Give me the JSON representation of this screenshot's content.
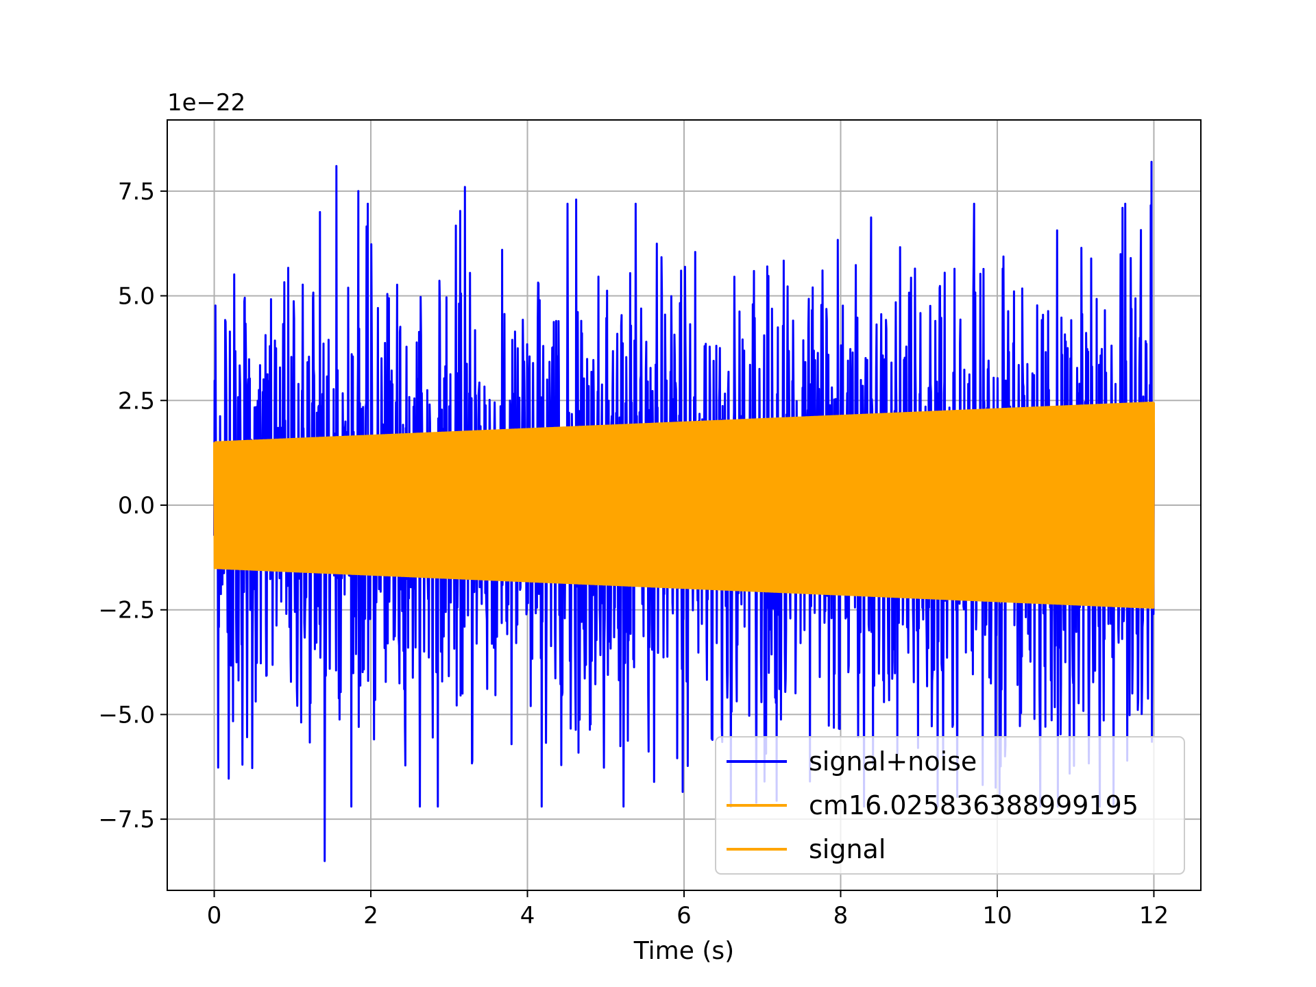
{
  "chart_data": {
    "type": "line",
    "title": "",
    "xlabel": "Time (s)",
    "ylabel": "",
    "offset_text": "1e−22",
    "xlim": [
      -0.6,
      12.6
    ],
    "ylim": [
      -9.2,
      9.2
    ],
    "xticks": [
      0,
      2,
      4,
      6,
      8,
      10,
      12
    ],
    "xtick_labels": [
      "0",
      "2",
      "4",
      "6",
      "8",
      "10",
      "12"
    ],
    "yticks": [
      -7.5,
      -5.0,
      -2.5,
      0.0,
      2.5,
      5.0,
      7.5
    ],
    "ytick_labels": [
      "−7.5",
      "−5.0",
      "−2.5",
      "0.0",
      "2.5",
      "5.0",
      "7.5"
    ],
    "grid": true,
    "legend_position": "lower-right",
    "series": [
      {
        "name": "signal+noise",
        "color": "#0000ff",
        "x_range": [
          0,
          12
        ],
        "y_range": [
          -8.5,
          8.2
        ],
        "peaks": [
          {
            "x": 1.41,
            "y": -8.5
          },
          {
            "x": 1.56,
            "y": 8.1
          },
          {
            "x": 11.97,
            "y": 8.2
          },
          {
            "x": 3.2,
            "y": 7.6
          },
          {
            "x": 1.84,
            "y": 7.5
          },
          {
            "x": 4.62,
            "y": 7.3
          },
          {
            "x": 1.35,
            "y": 7.0
          },
          {
            "x": 11.6,
            "y": 7.1
          },
          {
            "x": 7.03,
            "y": -6.6
          },
          {
            "x": 10.1,
            "y": -6.0
          }
        ]
      },
      {
        "name": "cm16.025836388999195",
        "color": "#ffa500",
        "x_range": [
          0,
          12
        ],
        "amplitude_start": 1.5,
        "amplitude_end": 2.45
      },
      {
        "name": "signal",
        "color": "#ffa500",
        "x_range": [
          0,
          12
        ],
        "amplitude_start": 1.5,
        "amplitude_end": 2.45
      }
    ]
  }
}
